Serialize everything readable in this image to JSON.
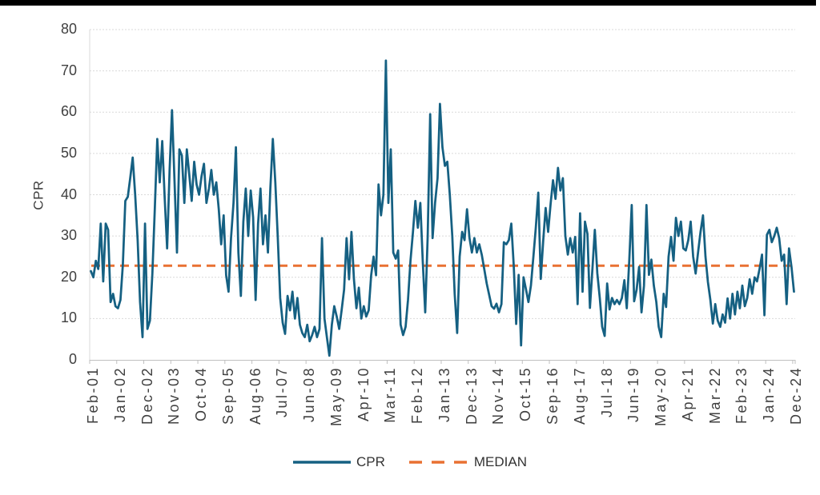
{
  "y_axis": {
    "title": "CPR",
    "ticks": [
      "0",
      "10",
      "20",
      "30",
      "40",
      "50",
      "60",
      "70",
      "80"
    ]
  },
  "legend": {
    "cpr": "CPR",
    "median": "MEDIAN"
  },
  "colors": {
    "cpr": "#156082",
    "median": "#E97132",
    "gridline": "#D9D9D9",
    "axis": "#BFBFBF",
    "text": "#404040",
    "topbar": "#000000"
  },
  "chart_data": {
    "type": "line",
    "title": "",
    "xlabel": "",
    "ylabel": "CPR",
    "ylim": [
      0,
      80
    ],
    "grid": "horizontal-dotted",
    "legend_position": "bottom",
    "x_unit": "monthly",
    "x_range": [
      "Feb-2001",
      "Dec-2024"
    ],
    "tick_labels": [
      "Feb-01",
      "Jan-02",
      "Dec-02",
      "Nov-03",
      "Oct-04",
      "Sep-05",
      "Aug-06",
      "Jul-07",
      "Jun-08",
      "May-09",
      "Apr-10",
      "Mar-11",
      "Feb-12",
      "Jan-13",
      "Dec-13",
      "Nov-14",
      "Oct-15",
      "Sep-16",
      "Aug-17",
      "Jul-18",
      "Jun-19",
      "May-20",
      "Apr-21",
      "Mar-22",
      "Feb-23",
      "Jan-24",
      "Dec-24"
    ],
    "tick_interval_months": 11,
    "median_value": 22.8,
    "series": [
      {
        "name": "CPR",
        "style": "solid",
        "values": [
          21.5,
          20,
          24,
          22,
          33,
          19,
          33,
          31.5,
          14,
          16,
          13,
          12.5,
          14.5,
          23,
          38.5,
          39.5,
          44,
          49,
          40,
          29,
          14,
          5.5,
          33,
          7.5,
          9.5,
          21,
          36.5,
          53.5,
          43,
          53,
          39.5,
          27,
          46,
          60.5,
          43.5,
          26,
          51,
          49.5,
          38,
          51,
          45,
          38.5,
          48,
          42.5,
          40,
          44.5,
          47.5,
          38,
          41.5,
          46,
          40,
          43,
          36.5,
          28,
          35,
          20.5,
          16.5,
          29.5,
          38,
          51.5,
          26,
          15.5,
          33.5,
          41.5,
          30,
          41,
          34.5,
          14.5,
          33,
          41.5,
          28,
          35,
          26,
          41.5,
          53.5,
          43,
          30,
          15,
          9,
          6.3,
          15.5,
          12,
          16.5,
          10,
          15,
          8.5,
          6.5,
          5.5,
          8.5,
          4.5,
          6,
          8,
          5.5,
          7.5,
          29.5,
          10,
          5.5,
          1,
          8.5,
          13,
          10.5,
          7.5,
          12,
          17,
          29.5,
          19.5,
          31,
          19.5,
          12.5,
          17.5,
          10,
          13,
          10.5,
          12,
          20.5,
          25,
          20.5,
          42.5,
          35,
          40,
          72.5,
          38,
          51,
          26,
          24.5,
          26.5,
          8.5,
          6,
          8,
          14.5,
          24,
          31,
          38.5,
          32,
          38,
          24,
          11.5,
          30,
          59.5,
          29.5,
          38,
          44,
          62,
          51.5,
          47,
          48,
          40,
          30,
          16,
          6.5,
          25,
          31,
          29,
          36.5,
          29.5,
          26,
          29.5,
          26,
          28,
          25.5,
          22,
          18.5,
          15.8,
          13,
          12.4,
          13.6,
          11.5,
          13.5,
          28.5,
          28,
          29,
          33,
          23,
          8.7,
          20.6,
          3.5,
          20,
          17,
          14,
          18,
          25,
          32,
          40.5,
          19.6,
          29,
          36.8,
          31,
          37.8,
          43.5,
          39,
          46.5,
          41,
          44,
          30,
          25.5,
          29.5,
          26,
          29.8,
          13.5,
          35.5,
          16.5,
          33.5,
          30.5,
          12.6,
          22,
          31.5,
          21,
          15,
          8,
          5.8,
          18.5,
          12.2,
          15,
          13.5,
          14.5,
          13.5,
          15,
          19.3,
          12.5,
          24,
          37.5,
          14.2,
          17,
          22.5,
          11.5,
          18,
          37.5,
          20.6,
          24.3,
          18,
          14,
          8,
          5.5,
          16,
          12.8,
          25,
          29.8,
          24,
          34.4,
          30,
          33.5,
          27,
          26.5,
          29,
          33.5,
          25,
          20.9,
          26,
          31,
          35,
          25,
          18.9,
          14.5,
          8.8,
          13.5,
          9.5,
          8,
          11,
          9,
          14.9,
          10,
          16,
          11,
          16.5,
          12.5,
          18,
          13,
          15,
          19.5,
          16,
          20,
          19,
          22,
          25.5,
          10.8,
          30.3,
          31.5,
          28.5,
          30,
          32,
          29.5,
          24,
          25.5,
          13.5,
          27,
          22.5,
          16.5
        ]
      },
      {
        "name": "MEDIAN",
        "style": "dashed",
        "type": "constant",
        "value": 22.8
      }
    ]
  }
}
